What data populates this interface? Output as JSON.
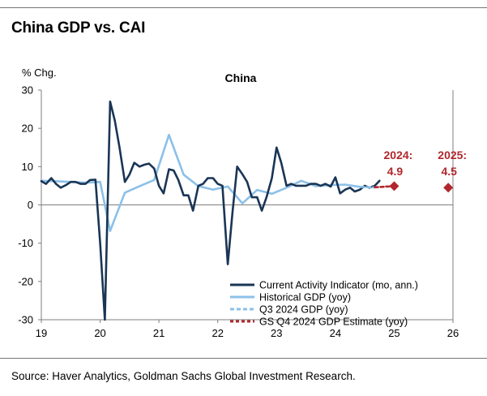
{
  "header": {
    "title": "China GDP vs. CAI"
  },
  "footer": {
    "source": "Source: Haver Analytics, Goldman Sachs Global Investment Research."
  },
  "colors": {
    "cai": "#1a3555",
    "historical_gdp": "#8cc0e8",
    "q3_gdp": "#8cc0e8",
    "estimate": "#b0282d",
    "axis": "#7f7f7f"
  },
  "chart_data": {
    "type": "line",
    "title": "China",
    "ylabel": "% Chg.",
    "xlabel": "",
    "ylim": [
      -30,
      30
    ],
    "yticks": [
      -30,
      -20,
      -10,
      0,
      10,
      20,
      30
    ],
    "xlim": [
      19,
      26
    ],
    "xticks": [
      19,
      20,
      21,
      22,
      23,
      24,
      25,
      26
    ],
    "grid": false,
    "legend_position": "bottom-right",
    "series": [
      {
        "name": "Current Activity Indicator (mo, ann.)",
        "style": "solid-dark",
        "x": [
          19.0,
          19.08,
          19.17,
          19.25,
          19.33,
          19.42,
          19.5,
          19.58,
          19.67,
          19.75,
          19.83,
          19.92,
          20.0,
          20.08,
          20.17,
          20.25,
          20.33,
          20.42,
          20.5,
          20.58,
          20.67,
          20.75,
          20.83,
          20.92,
          21.0,
          21.08,
          21.17,
          21.25,
          21.33,
          21.42,
          21.5,
          21.58,
          21.67,
          21.75,
          21.83,
          21.92,
          22.0,
          22.08,
          22.17,
          22.25,
          22.33,
          22.42,
          22.5,
          22.58,
          22.67,
          22.75,
          22.83,
          22.92,
          23.0,
          23.08,
          23.17,
          23.25,
          23.33,
          23.42,
          23.5,
          23.58,
          23.67,
          23.75,
          23.83,
          23.92,
          24.0,
          24.08,
          24.17,
          24.25,
          24.33,
          24.42,
          24.5,
          24.58,
          24.67,
          24.75
        ],
        "y": [
          6.2,
          5.5,
          7.0,
          5.5,
          4.5,
          5.2,
          6.0,
          6.0,
          5.5,
          5.5,
          6.5,
          6.6,
          -10.0,
          -30.0,
          27.0,
          22.0,
          15.0,
          6.0,
          8.0,
          11.0,
          10.0,
          10.5,
          10.8,
          9.5,
          5.0,
          3.0,
          9.3,
          9.0,
          6.5,
          2.5,
          2.5,
          -1.5,
          5.0,
          5.5,
          7.0,
          7.0,
          5.5,
          5.0,
          -15.5,
          -2.0,
          10.0,
          8.0,
          6.0,
          2.0,
          2.0,
          -1.5,
          2.0,
          7.0,
          15.0,
          11.0,
          5.0,
          5.5,
          5.0,
          5.0,
          5.0,
          5.5,
          5.5,
          5.0,
          5.5,
          4.8,
          7.2,
          3.0,
          4.0,
          4.5,
          3.5,
          4.0,
          5.0,
          4.5,
          5.0,
          6.3
        ]
      },
      {
        "name": "Historical GDP (yoy)",
        "style": "solid-light",
        "x": [
          19.0,
          19.25,
          19.5,
          19.75,
          20.0,
          20.17,
          20.42,
          20.67,
          20.92,
          21.17,
          21.42,
          21.67,
          21.92,
          22.17,
          22.42,
          22.67,
          22.92,
          23.17,
          23.42,
          23.67,
          23.92,
          24.17,
          24.42
        ],
        "y": [
          6.3,
          6.2,
          6.0,
          5.8,
          6.0,
          -6.8,
          3.2,
          4.9,
          6.5,
          18.3,
          7.9,
          4.9,
          4.0,
          4.8,
          0.4,
          3.9,
          2.9,
          4.5,
          6.3,
          4.9,
          5.2,
          5.3,
          4.7
        ]
      },
      {
        "name": "Q3 2024 GDP (yoy)",
        "style": "dashed-light",
        "x": [
          24.42,
          24.67
        ],
        "y": [
          4.7,
          4.6
        ]
      },
      {
        "name": "GS Q4 2024 GDP Estimate (yoy)",
        "style": "dashed-red",
        "x": [
          24.67,
          25.0
        ],
        "y": [
          4.6,
          4.9
        ]
      }
    ],
    "point_markers": [
      {
        "x": 25.0,
        "y": 4.9,
        "label_year": "2024:",
        "label_value": "4.9"
      },
      {
        "x": 25.92,
        "y": 4.5,
        "label_year": "2025:",
        "label_value": "4.5"
      }
    ]
  }
}
